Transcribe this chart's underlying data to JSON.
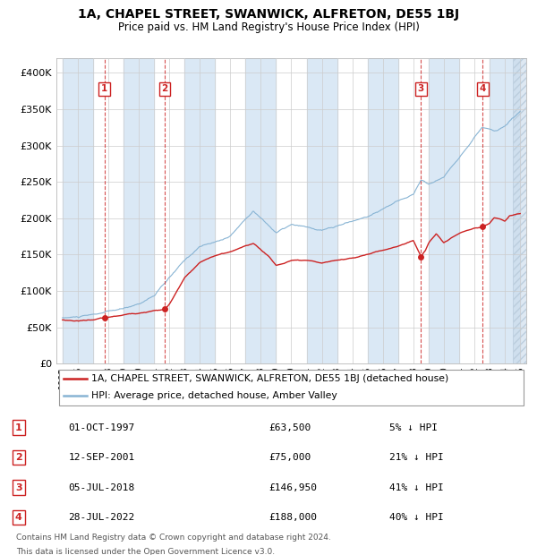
{
  "title": "1A, CHAPEL STREET, SWANWICK, ALFRETON, DE55 1BJ",
  "subtitle": "Price paid vs. HM Land Registry's House Price Index (HPI)",
  "legend_label_red": "1A, CHAPEL STREET, SWANWICK, ALFRETON, DE55 1BJ (detached house)",
  "legend_label_blue": "HPI: Average price, detached house, Amber Valley",
  "footnote1": "Contains HM Land Registry data © Crown copyright and database right 2024.",
  "footnote2": "This data is licensed under the Open Government Licence v3.0.",
  "sales": [
    {
      "n": 1,
      "date": "01-OCT-1997",
      "price": 63500,
      "pct": "5%",
      "x_year": 1997.75
    },
    {
      "n": 2,
      "date": "12-SEP-2001",
      "price": 75000,
      "pct": "21%",
      "x_year": 2001.7
    },
    {
      "n": 3,
      "date": "05-JUL-2018",
      "price": 146950,
      "pct": "41%",
      "x_year": 2018.5
    },
    {
      "n": 4,
      "date": "28-JUL-2022",
      "price": 188000,
      "pct": "40%",
      "x_year": 2022.55
    }
  ],
  "ylim": [
    0,
    420000
  ],
  "xlim_start": 1994.6,
  "xlim_end": 2025.4,
  "hatch_start": 2024.5,
  "shade_bands": [
    [
      1995.0,
      1997.0
    ],
    [
      1999.0,
      2001.0
    ],
    [
      2003.0,
      2005.0
    ],
    [
      2007.0,
      2009.0
    ],
    [
      2011.0,
      2013.0
    ],
    [
      2015.0,
      2017.0
    ],
    [
      2019.0,
      2021.0
    ],
    [
      2023.0,
      2025.0
    ]
  ],
  "shade_color": "#dae8f5",
  "hatch_color": "#c8daea",
  "red_color": "#cc2222",
  "blue_color": "#88b4d4",
  "dashed_color": "#cc2222",
  "grid_color": "#cccccc",
  "bg_color": "#ffffff",
  "box_color": "#cc2222",
  "yticks": [
    0,
    50000,
    100000,
    150000,
    200000,
    250000,
    300000,
    350000,
    400000
  ],
  "ylabels": [
    "£0",
    "£50K",
    "£100K",
    "£150K",
    "£200K",
    "£250K",
    "£300K",
    "£350K",
    "£400K"
  ]
}
